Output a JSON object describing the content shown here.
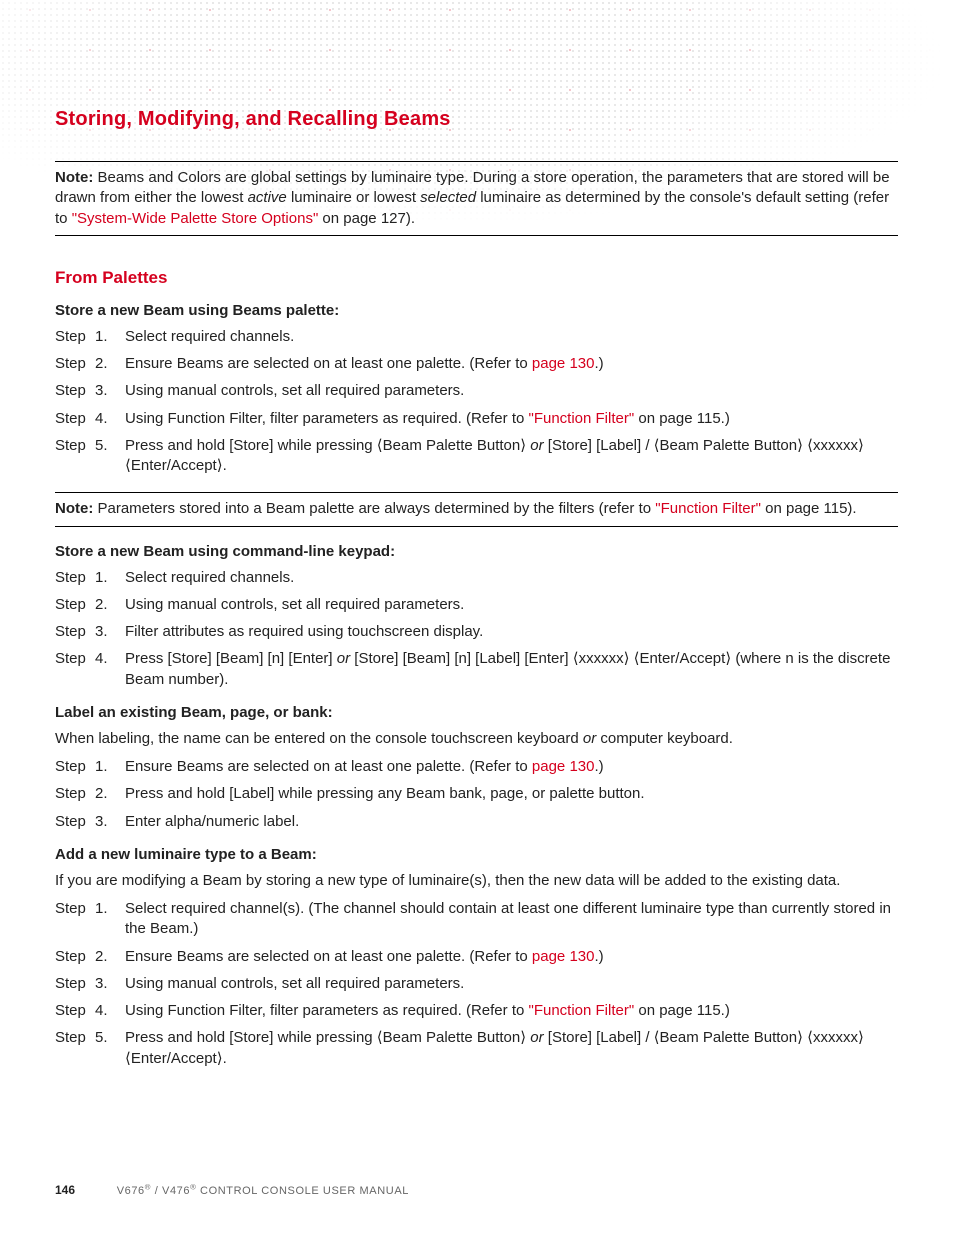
{
  "colors": {
    "accent": "#d5001e",
    "text": "#222222",
    "footer_muted": "#666666",
    "rule": "#000000",
    "background": "#ffffff"
  },
  "fonts": {
    "body_family": "Arial",
    "body_size_pt": 11,
    "heading_family": "Arial Narrow",
    "section_title_size_pt": 15,
    "subhead_size_pt": 13
  },
  "section_title": "Storing, Modifying, and Recalling Beams",
  "note_top": {
    "label": "Note:",
    "text_before_italic1": "  Beams and Colors are global settings by luminaire type. During a store operation, the parameters that are stored will be drawn from either the lowest ",
    "italic1": "active",
    "text_mid": " luminaire or lowest ",
    "italic2": "selected",
    "text_after_italic2": " luminaire as determined by the console's default setting (refer to ",
    "link": "\"System-Wide Palette Store Options\"",
    "after_link": " on page 127)."
  },
  "subhead": "From Palettes",
  "proc1": {
    "title": "Store a new Beam using Beams palette:",
    "steps": [
      {
        "n": "1.",
        "body": "Select required channels."
      },
      {
        "n": "2.",
        "pre": "Ensure Beams are selected on at least one palette. (Refer to ",
        "link": "page 130",
        "post": ".)"
      },
      {
        "n": "3.",
        "body": "Using manual controls, set all required parameters."
      },
      {
        "n": "4.",
        "pre": "Using Function Filter, filter parameters as required. (Refer to ",
        "link": "\"Function Filter\"",
        "post": " on page 115.)"
      },
      {
        "n": "5.",
        "pre": "Press and hold [Store] while pressing ⟨Beam Palette Button⟩ ",
        "italic": "or",
        "post": " [Store] [Label] / ⟨Beam Palette Button⟩ ⟨xxxxxx⟩ ⟨Enter/Accept⟩."
      }
    ]
  },
  "note_mid": {
    "label": "Note:",
    "pre": "  Parameters stored into a Beam palette are always determined by the filters (refer to ",
    "link": "\"Function Filter\"",
    "post": " on page 115)."
  },
  "proc2": {
    "title": "Store a new Beam using command-line keypad:",
    "steps": [
      {
        "n": "1.",
        "body": "Select required channels."
      },
      {
        "n": "2.",
        "body": "Using manual controls, set all required parameters."
      },
      {
        "n": "3.",
        "body": "Filter attributes as required using touchscreen display."
      },
      {
        "n": "4.",
        "pre": "Press [Store] [Beam] [n] [Enter] ",
        "italic": "or",
        "post": " [Store] [Beam] [n] [Label] [Enter] ⟨xxxxxx⟩ ⟨Enter/Accept⟩ (where n is the discrete Beam number)."
      }
    ]
  },
  "proc3": {
    "title": "Label an existing Beam, page, or bank:",
    "intro_pre": "When labeling, the name can be entered on the console touchscreen keyboard ",
    "intro_italic": "or",
    "intro_post": " computer keyboard.",
    "steps": [
      {
        "n": "1.",
        "pre": "Ensure Beams are selected on at least one palette. (Refer to ",
        "link": "page 130",
        "post": ".)"
      },
      {
        "n": "2.",
        "body": "Press and hold [Label] while pressing any Beam bank, page, or palette button."
      },
      {
        "n": "3.",
        "body": "Enter alpha/numeric label."
      }
    ]
  },
  "proc4": {
    "title": "Add a new luminaire type to a Beam:",
    "intro": "If you are modifying a Beam by storing a new type of luminaire(s), then the new data will be added to the existing data.",
    "steps": [
      {
        "n": "1.",
        "body": "Select required channel(s). (The channel should contain at least one different luminaire type than currently stored in the Beam.)"
      },
      {
        "n": "2.",
        "pre": "Ensure Beams are selected on at least one palette. (Refer to ",
        "link": "page 130",
        "post": ".)"
      },
      {
        "n": "3.",
        "body": "Using manual controls, set all required parameters."
      },
      {
        "n": "4.",
        "pre": "Using Function Filter, filter parameters as required. (Refer to ",
        "link": "\"Function Filter\"",
        "post": " on page 115.)"
      },
      {
        "n": "5.",
        "pre": "Press and hold [Store] while pressing ⟨Beam Palette Button⟩ ",
        "italic": "or",
        "post": " [Store] [Label] / ⟨Beam Palette Button⟩ ⟨xxxxxx⟩ ⟨Enter/Accept⟩."
      }
    ]
  },
  "step_word": "Step",
  "footer": {
    "page": "146",
    "doc": "V676® / V476® CONTROL CONSOLE USER MANUAL"
  }
}
